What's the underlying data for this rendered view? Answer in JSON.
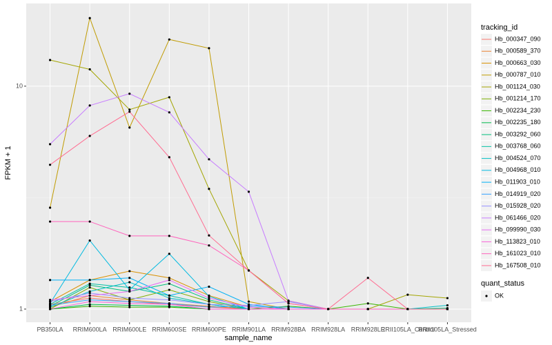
{
  "chart_data": {
    "type": "line",
    "x_label": "sample_name",
    "y_label": "FPKM + 1",
    "log_y": true,
    "grid": true,
    "categories": [
      "PB350LA",
      "RRIM600LA",
      "RRIM600LE",
      "RRIM600SE",
      "RRIM600PE",
      "RRIM901LA",
      "RRIM928BA",
      "RRIM928LA",
      "RRIM928LE",
      "RRII105LA_Control",
      "RRII105LA_Stressed"
    ],
    "ylim": [
      0.873,
      23.5
    ],
    "yticks": [
      1,
      10
    ],
    "legend_title": "tracking_id",
    "point_legend_title": "quant_status",
    "point_legend_label": "OK",
    "point_color": "#000000",
    "series": [
      {
        "name": "Hb_000347_090",
        "color": "#F8766D",
        "values": [
          1.05,
          1.12,
          1.08,
          1.05,
          1.02,
          1,
          1,
          1,
          1,
          1,
          1
        ]
      },
      {
        "name": "Hb_000589_370",
        "color": "#EA8331",
        "values": [
          1.02,
          1.15,
          1.1,
          1.06,
          1.03,
          1,
          1,
          1,
          1,
          1,
          1
        ]
      },
      {
        "name": "Hb_000663_030",
        "color": "#D89000",
        "values": [
          1.08,
          1.35,
          1.48,
          1.38,
          1.15,
          1.02,
          1,
          1,
          1,
          1,
          1
        ]
      },
      {
        "name": "Hb_000787_010",
        "color": "#C09B00",
        "values": [
          2.85,
          20.2,
          6.52,
          16.2,
          14.8,
          1.08,
          1,
          1,
          1,
          1,
          1
        ]
      },
      {
        "name": "Hb_001124_030",
        "color": "#A3A500",
        "values": [
          13.1,
          11.9,
          7.85,
          8.92,
          3.46,
          1.49,
          1.09,
          1,
          1,
          1.16,
          1.12
        ]
      },
      {
        "name": "Hb_001214_170",
        "color": "#7CAE00",
        "values": [
          1,
          1.25,
          1.1,
          1.22,
          1.08,
          1,
          1,
          1,
          1,
          1,
          1
        ]
      },
      {
        "name": "Hb_002234_230",
        "color": "#39B600",
        "values": [
          1,
          1.03,
          1.02,
          1.02,
          1,
          1,
          1.03,
          1,
          1.06,
          1,
          1
        ]
      },
      {
        "name": "Hb_002235_180",
        "color": "#00BB4E",
        "values": [
          1,
          1.05,
          1.04,
          1.03,
          1,
          1,
          1,
          1,
          1,
          1,
          1
        ]
      },
      {
        "name": "Hb_003292_060",
        "color": "#00BF7D",
        "values": [
          1.03,
          1.28,
          1.2,
          1.3,
          1.1,
          1,
          1,
          1,
          1,
          1,
          1.01
        ]
      },
      {
        "name": "Hb_003768_060",
        "color": "#00C1A3",
        "values": [
          1.05,
          1.3,
          1.25,
          1.15,
          1.05,
          1,
          1,
          1,
          1,
          1,
          1
        ]
      },
      {
        "name": "Hb_004524_070",
        "color": "#00BFC4",
        "values": [
          1.02,
          1.2,
          1.32,
          1.12,
          1.05,
          1,
          1,
          1,
          1,
          1,
          1.04
        ]
      },
      {
        "name": "Hb_004968_010",
        "color": "#00BAE0",
        "values": [
          1.06,
          2.03,
          1.22,
          1.77,
          1.14,
          1,
          1,
          1,
          1,
          1,
          1
        ]
      },
      {
        "name": "Hb_011903_010",
        "color": "#00B0F6",
        "values": [
          1.35,
          1.35,
          1.38,
          1.15,
          1.26,
          1.05,
          1,
          1,
          1,
          1,
          1
        ]
      },
      {
        "name": "Hb_014919_020",
        "color": "#35A2FF",
        "values": [
          1.04,
          1.1,
          1.08,
          1.06,
          1.02,
          1.03,
          1.02,
          1,
          1,
          1,
          1
        ]
      },
      {
        "name": "Hb_015928_020",
        "color": "#9590FF",
        "values": [
          1.08,
          1.18,
          1.12,
          1.1,
          1.05,
          1.04,
          1.08,
          1,
          1,
          1,
          1
        ]
      },
      {
        "name": "Hb_061466_020",
        "color": "#C77CFF",
        "values": [
          5.49,
          8.19,
          9.25,
          7.63,
          4.7,
          3.36,
          1.09,
          1,
          1,
          1,
          1
        ]
      },
      {
        "name": "Hb_099990_030",
        "color": "#E76BF3",
        "values": [
          1.1,
          1.15,
          1.2,
          1.35,
          1.12,
          1.02,
          1,
          1,
          1,
          1,
          1
        ]
      },
      {
        "name": "Hb_113823_010",
        "color": "#FA62DB",
        "values": [
          1,
          1.08,
          1.06,
          1.05,
          1,
          1,
          1,
          1,
          1,
          1,
          1
        ]
      },
      {
        "name": "Hb_161023_010",
        "color": "#FF62BC",
        "values": [
          2.47,
          2.47,
          2.13,
          2.13,
          1.93,
          1.49,
          1.06,
          1,
          1,
          1,
          1
        ]
      },
      {
        "name": "Hb_167508_010",
        "color": "#FF6C91",
        "values": [
          4.44,
          5.98,
          7.68,
          4.8,
          2.14,
          1.49,
          1.06,
          1,
          1.38,
          1,
          1
        ]
      }
    ]
  }
}
